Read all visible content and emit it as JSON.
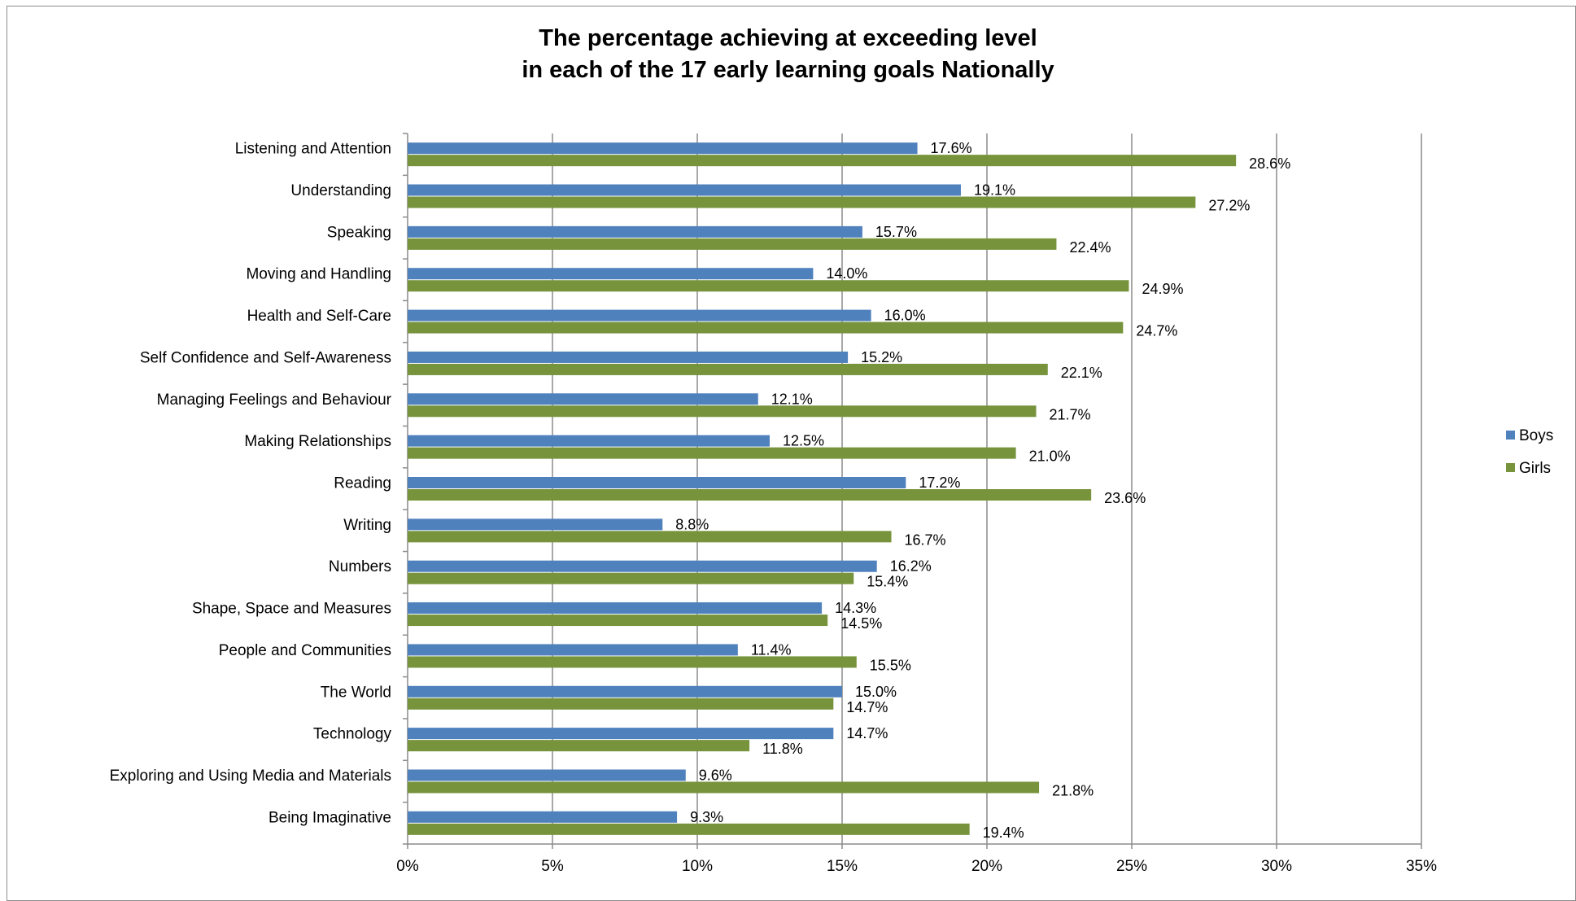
{
  "chart_data": {
    "type": "bar",
    "orientation": "horizontal",
    "title": [
      "The percentage achieving at exceeding level",
      "in each of the 17 early learning goals Nationally"
    ],
    "categories": [
      "Listening and Attention",
      "Understanding",
      "Speaking",
      "Moving and Handling",
      "Health and Self-Care",
      "Self Confidence and Self-Awareness",
      "Managing Feelings and Behaviour",
      "Making Relationships",
      "Reading",
      "Writing",
      "Numbers",
      "Shape, Space and Measures",
      "People and Communities",
      "The World",
      "Technology",
      "Exploring and Using Media and Materials",
      "Being Imaginative"
    ],
    "series": [
      {
        "name": "Boys",
        "color": "#4f81bd",
        "values": [
          17.6,
          19.1,
          15.7,
          14.0,
          16.0,
          15.2,
          12.1,
          12.5,
          17.2,
          8.8,
          16.2,
          14.3,
          11.4,
          15.0,
          14.7,
          9.6,
          9.3
        ],
        "labels": [
          "17.6%",
          "19.1%",
          "15.7%",
          "14.0%",
          "16.0%",
          "15.2%",
          "12.1%",
          "12.5%",
          "17.2%",
          "8.8%",
          "16.2%",
          "14.3%",
          "11.4%",
          "15.0%",
          "14.7%",
          "9.6%",
          "9.3%"
        ]
      },
      {
        "name": "Girls",
        "color": "#77933c",
        "values": [
          28.6,
          27.2,
          22.4,
          24.9,
          24.7,
          22.1,
          21.7,
          21.0,
          23.6,
          16.7,
          15.4,
          14.5,
          15.5,
          14.7,
          11.8,
          21.8,
          19.4
        ],
        "labels": [
          "28.6%",
          "27.2%",
          "22.4%",
          "24.9%",
          "24.7%",
          "22.1%",
          "21.7%",
          "21.0%",
          "23.6%",
          "16.7%",
          "15.4%",
          "14.5%",
          "15.5%",
          "14.7%",
          "11.8%",
          "21.8%",
          "19.4%"
        ]
      }
    ],
    "xlim": [
      0,
      35
    ],
    "xticks": [
      0,
      5,
      10,
      15,
      20,
      25,
      30,
      35
    ],
    "xtick_labels": [
      "0%",
      "5%",
      "10%",
      "15%",
      "20%",
      "25%",
      "30%",
      "35%"
    ],
    "grid": "vertical",
    "legend_position": "right",
    "colors": {
      "gridline": "#8c8c8c",
      "axis": "#8c8c8c"
    }
  }
}
